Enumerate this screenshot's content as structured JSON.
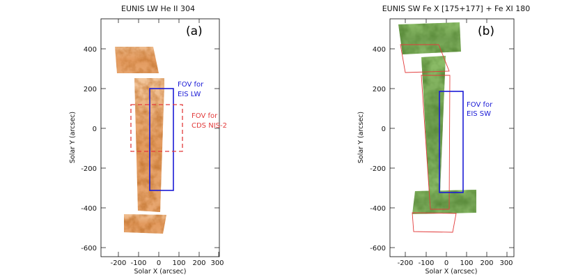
{
  "figure": {
    "panel_a": {
      "title": "EUNIS LW He II 304",
      "label": "(a)",
      "xlabel": "Solar X (arcsec)",
      "ylabel": "Solar Y (arcsec)",
      "xticks": [
        "-200",
        "-100",
        "0",
        "100",
        "200",
        "300"
      ],
      "yticks": [
        "400",
        "200",
        "0",
        "-200",
        "-400",
        "-600"
      ],
      "annotations": {
        "eis_line1": "FOV for",
        "eis_line2": "EIS LW",
        "cds_line1": "FOV for",
        "cds_line2": "CDS NIS-2"
      },
      "colors": {
        "eis_box": "#1a1ad6",
        "cds_box": "#e23a3a",
        "map_low": "#8b2c08",
        "map_high": "#fff0d8"
      }
    },
    "panel_b": {
      "title": "EUNIS SW Fe X [175+177] + Fe XI 180",
      "label": "(b)",
      "xlabel": "Solar X (arcsec)",
      "ylabel": "Solar Y (arcsec)",
      "xticks": [
        "-200",
        "-100",
        "0",
        "100",
        "200",
        "300"
      ],
      "yticks": [
        "400",
        "200",
        "0",
        "-200",
        "-400",
        "-600"
      ],
      "annotations": {
        "eis_line1": "FOV for",
        "eis_line2": "EIS SW"
      },
      "colors": {
        "eis_box": "#1a1ad6",
        "outline": "#e23a3a",
        "map_low": "#123a08",
        "map_high": "#eafff0"
      }
    }
  }
}
